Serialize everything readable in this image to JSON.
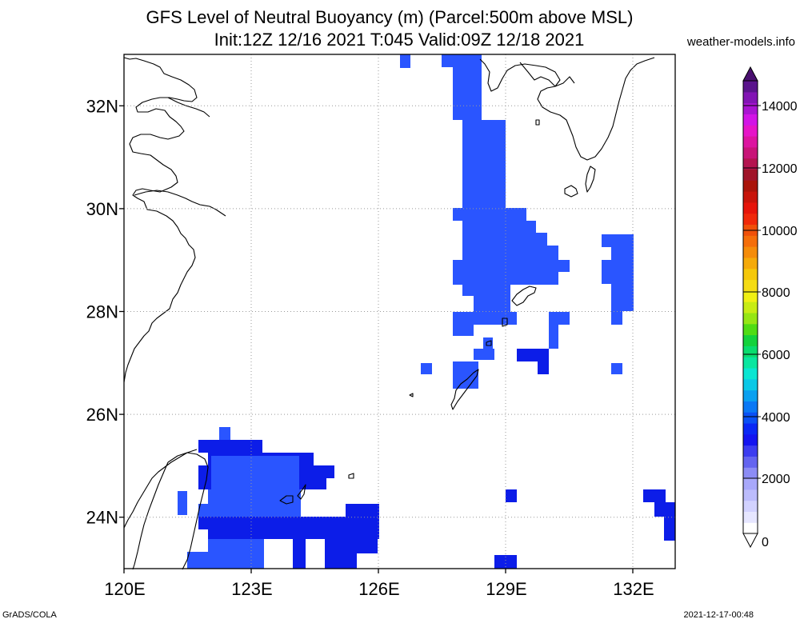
{
  "title_line1": "GFS Level of Neutral Buoyancy (m) (Parcel:500m above MSL)",
  "title_line2": "Init:12Z 12/16 2021 T:045 Valid:09Z 12/18 2021",
  "site": "weather-models.info",
  "footer_left": "GrADS/COLA",
  "footer_right": "2021-12-17-00:48",
  "map": {
    "lon_labels": [
      "120E",
      "123E",
      "126E",
      "129E",
      "132E"
    ],
    "lat_labels": [
      "32N",
      "30N",
      "28N",
      "26N",
      "24N"
    ],
    "lon_range": [
      120,
      133
    ],
    "lat_range": [
      23,
      33
    ],
    "grid": "dotted every 3° longitude, 2° latitude",
    "field_color_low": "#2a55ff",
    "field_color_high": "#0c1de8",
    "coastline_color": "#000000"
  },
  "colorbar": {
    "labels": [
      "0",
      "2000",
      "4000",
      "6000",
      "8000",
      "10000",
      "12000",
      "14000"
    ],
    "colors": [
      "#ffffff",
      "#e6e6ff",
      "#d2d2ff",
      "#bcbcfc",
      "#a8a8fa",
      "#8c8cf5",
      "#6464f0",
      "#3c3cf0",
      "#1414f0",
      "#0a28f5",
      "#0a50f5",
      "#0a78f5",
      "#0aa0f0",
      "#0ac8e6",
      "#0ae6d2",
      "#0ae6a0",
      "#0adc6e",
      "#14d23c",
      "#50dc14",
      "#96e614",
      "#c8ec14",
      "#f0f014",
      "#f5dc14",
      "#f5c80a",
      "#f5aa0a",
      "#f58c0a",
      "#f56e0a",
      "#f0500a",
      "#f0280a",
      "#e6140a",
      "#c8140a",
      "#aa140a",
      "#a01428",
      "#b41450",
      "#c81478",
      "#dc14a0",
      "#e614c8",
      "#d214e6",
      "#aa14d2",
      "#8214b4",
      "#5a148c"
    ]
  }
}
